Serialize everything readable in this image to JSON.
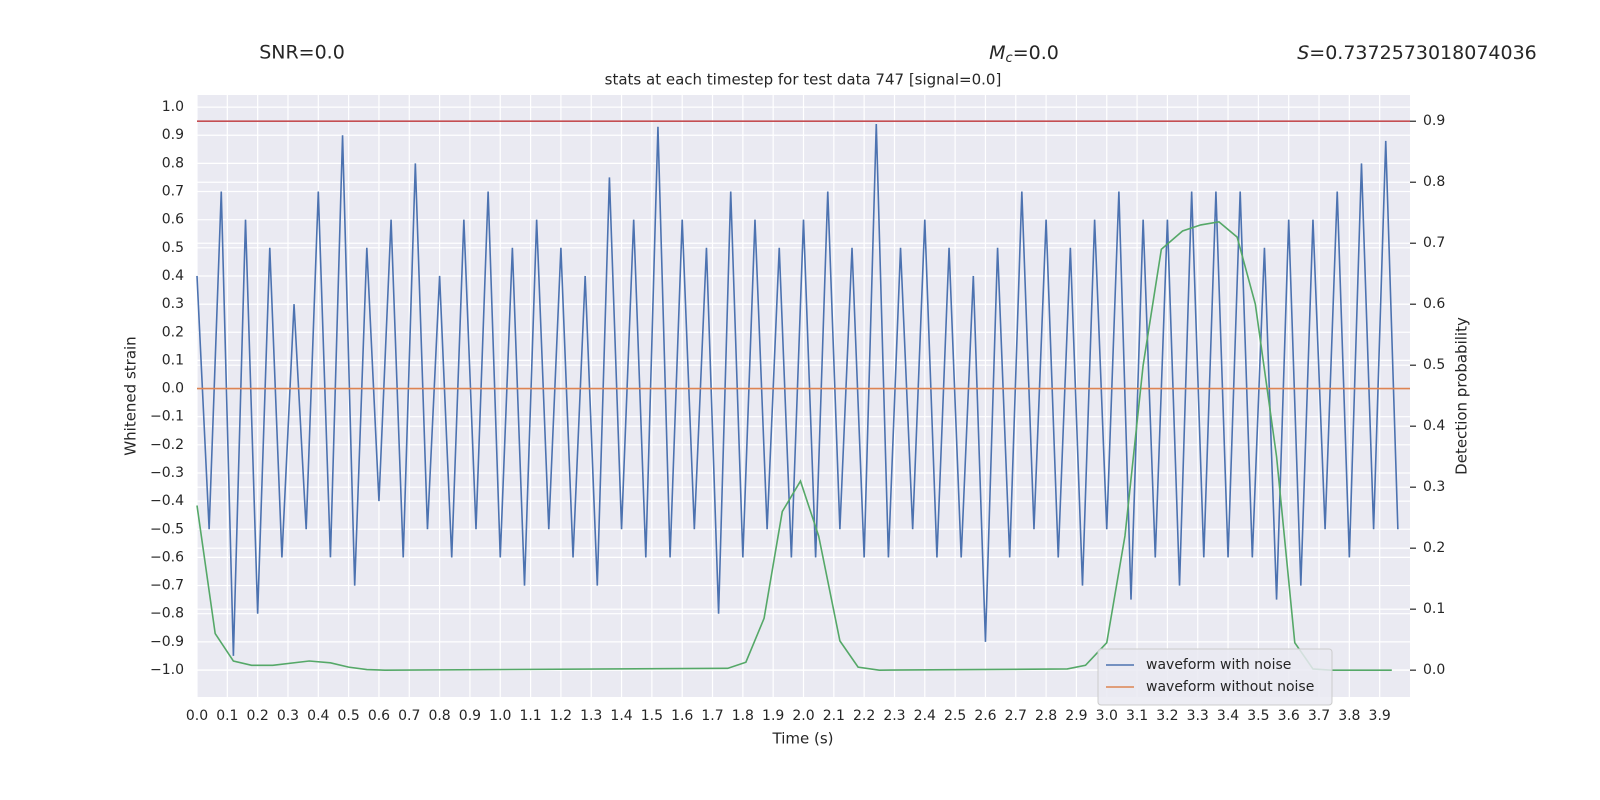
{
  "chart_data": {
    "type": "line",
    "title": "stats at each timestep for test data 747 [signal=0.0]",
    "annotations": [
      {
        "text": "SNR=0.0"
      },
      {
        "symbol": "M",
        "sub": "c",
        "text": "=0.0"
      },
      {
        "symbol": "S",
        "text": "=0.7372573018074036"
      }
    ],
    "xlabel": "Time (s)",
    "ylabel": "Whitened strain",
    "y2label": "Detection probability",
    "xlim": [
      0,
      4.0
    ],
    "ylim": [
      -1.096,
      1.043
    ],
    "y2lim": [
      -0.044,
      0.943
    ],
    "grid": true,
    "legend": "lower right",
    "background": "#eaeaf2",
    "xticks": [
      {
        "value": 0.0,
        "label": "0.0"
      },
      {
        "value": 0.1,
        "label": "0.1"
      },
      {
        "value": 0.2,
        "label": "0.2"
      },
      {
        "value": 0.3,
        "label": "0.3"
      },
      {
        "value": 0.4,
        "label": "0.4"
      },
      {
        "value": 0.5,
        "label": "0.5"
      },
      {
        "value": 0.6,
        "label": "0.6"
      },
      {
        "value": 0.7,
        "label": "0.7"
      },
      {
        "value": 0.8,
        "label": "0.8"
      },
      {
        "value": 0.9,
        "label": "0.9"
      },
      {
        "value": 1.0,
        "label": "1.0"
      },
      {
        "value": 1.1,
        "label": "1.1"
      },
      {
        "value": 1.2,
        "label": "1.2"
      },
      {
        "value": 1.3,
        "label": "1.3"
      },
      {
        "value": 1.4,
        "label": "1.4"
      },
      {
        "value": 1.5,
        "label": "1.5"
      },
      {
        "value": 1.6,
        "label": "1.6"
      },
      {
        "value": 1.7,
        "label": "1.7"
      },
      {
        "value": 1.8,
        "label": "1.8"
      },
      {
        "value": 1.9,
        "label": "1.9"
      },
      {
        "value": 2.0,
        "label": "2.0"
      },
      {
        "value": 2.1,
        "label": "2.1"
      },
      {
        "value": 2.2,
        "label": "2.2"
      },
      {
        "value": 2.3,
        "label": "2.3"
      },
      {
        "value": 2.4,
        "label": "2.4"
      },
      {
        "value": 2.5,
        "label": "2.5"
      },
      {
        "value": 2.6,
        "label": "2.6"
      },
      {
        "value": 2.7,
        "label": "2.7"
      },
      {
        "value": 2.8,
        "label": "2.8"
      },
      {
        "value": 2.9,
        "label": "2.9"
      },
      {
        "value": 3.0,
        "label": "3.0"
      },
      {
        "value": 3.1,
        "label": "3.1"
      },
      {
        "value": 3.2,
        "label": "3.2"
      },
      {
        "value": 3.3,
        "label": "3.3"
      },
      {
        "value": 3.4,
        "label": "3.4"
      },
      {
        "value": 3.5,
        "label": "3.5"
      },
      {
        "value": 3.6,
        "label": "3.6"
      },
      {
        "value": 3.7,
        "label": "3.7"
      },
      {
        "value": 3.8,
        "label": "3.8"
      },
      {
        "value": 3.9,
        "label": "3.9"
      }
    ],
    "yticks": [
      {
        "value": -1.0,
        "label": "−1.0"
      },
      {
        "value": -0.9,
        "label": "−0.9"
      },
      {
        "value": -0.8,
        "label": "−0.8"
      },
      {
        "value": -0.7,
        "label": "−0.7"
      },
      {
        "value": -0.6,
        "label": "−0.6"
      },
      {
        "value": -0.5,
        "label": "−0.5"
      },
      {
        "value": -0.4,
        "label": "−0.4"
      },
      {
        "value": -0.3,
        "label": "−0.3"
      },
      {
        "value": -0.2,
        "label": "−0.2"
      },
      {
        "value": -0.1,
        "label": "−0.1"
      },
      {
        "value": 0.0,
        "label": "0.0"
      },
      {
        "value": 0.1,
        "label": "0.1"
      },
      {
        "value": 0.2,
        "label": "0.2"
      },
      {
        "value": 0.3,
        "label": "0.3"
      },
      {
        "value": 0.4,
        "label": "0.4"
      },
      {
        "value": 0.5,
        "label": "0.5"
      },
      {
        "value": 0.6,
        "label": "0.6"
      },
      {
        "value": 0.7,
        "label": "0.7"
      },
      {
        "value": 0.8,
        "label": "0.8"
      },
      {
        "value": 0.9,
        "label": "0.9"
      },
      {
        "value": 1.0,
        "label": "1.0"
      }
    ],
    "y2ticks": [
      {
        "value": 0.0,
        "label": "0.0"
      },
      {
        "value": 0.1,
        "label": "0.1"
      },
      {
        "value": 0.2,
        "label": "0.2"
      },
      {
        "value": 0.3,
        "label": "0.3"
      },
      {
        "value": 0.4,
        "label": "0.4"
      },
      {
        "value": 0.5,
        "label": "0.5"
      },
      {
        "value": 0.6,
        "label": "0.6"
      },
      {
        "value": 0.7,
        "label": "0.7"
      },
      {
        "value": 0.8,
        "label": "0.8"
      },
      {
        "value": 0.9,
        "label": "0.9"
      }
    ],
    "hlines": [
      {
        "value": 0.9,
        "axis": "y2",
        "color": "#c44e52"
      }
    ],
    "series": [
      {
        "name": "waveform with noise",
        "color": "#4c72b0",
        "x": [
          0,
          0.04,
          0.08,
          0.12,
          0.16,
          0.2,
          0.24,
          0.28,
          0.32,
          0.36,
          0.4,
          0.44,
          0.48,
          0.52,
          0.56,
          0.6,
          0.64,
          0.68,
          0.72,
          0.76,
          0.8,
          0.84,
          0.88,
          0.92,
          0.96,
          1.0,
          1.04,
          1.08,
          1.12,
          1.16,
          1.2,
          1.24,
          1.28,
          1.32,
          1.36,
          1.4,
          1.44,
          1.48,
          1.52,
          1.56,
          1.6,
          1.64,
          1.68,
          1.72,
          1.76,
          1.8,
          1.84,
          1.88,
          1.92,
          1.96,
          2.0,
          2.04,
          2.08,
          2.12,
          2.16,
          2.2,
          2.24,
          2.28,
          2.32,
          2.36,
          2.4,
          2.44,
          2.48,
          2.52,
          2.56,
          2.6,
          2.64,
          2.68,
          2.72,
          2.76,
          2.8,
          2.84,
          2.88,
          2.92,
          2.96,
          3.0,
          3.04,
          3.08,
          3.12,
          3.16,
          3.2,
          3.24,
          3.28,
          3.32,
          3.36,
          3.4,
          3.44,
          3.48,
          3.52,
          3.56,
          3.6,
          3.64,
          3.68,
          3.72,
          3.76,
          3.8,
          3.84,
          3.88,
          3.92,
          3.96
        ],
        "values": [
          0.4,
          -0.5,
          0.7,
          -0.95,
          0.6,
          -0.8,
          0.5,
          -0.6,
          0.3,
          -0.5,
          0.7,
          -0.6,
          0.9,
          -0.7,
          0.5,
          -0.4,
          0.6,
          -0.6,
          0.8,
          -0.5,
          0.4,
          -0.6,
          0.6,
          -0.5,
          0.7,
          -0.6,
          0.5,
          -0.7,
          0.6,
          -0.5,
          0.5,
          -0.6,
          0.4,
          -0.7,
          0.75,
          -0.5,
          0.6,
          -0.6,
          0.93,
          -0.6,
          0.6,
          -0.5,
          0.5,
          -0.8,
          0.7,
          -0.6,
          0.6,
          -0.5,
          0.5,
          -0.6,
          0.6,
          -0.6,
          0.7,
          -0.5,
          0.5,
          -0.6,
          0.94,
          -0.6,
          0.5,
          -0.5,
          0.6,
          -0.6,
          0.5,
          -0.6,
          0.4,
          -0.9,
          0.5,
          -0.6,
          0.7,
          -0.5,
          0.6,
          -0.6,
          0.5,
          -0.7,
          0.6,
          -0.5,
          0.7,
          -0.75,
          0.6,
          -0.6,
          0.6,
          -0.7,
          0.7,
          -0.6,
          0.7,
          -0.6,
          0.7,
          -0.6,
          0.5,
          -0.75,
          0.6,
          -0.7,
          0.6,
          -0.5,
          0.7,
          -0.6,
          0.8,
          -0.5,
          0.88,
          -0.5
        ]
      },
      {
        "name": "waveform without noise",
        "color": "#dd8452",
        "x": [
          0,
          4.0
        ],
        "values": [
          0,
          0
        ]
      },
      {
        "color": "#55a868",
        "axis": "y2",
        "x": [
          0.0,
          0.06,
          0.12,
          0.18,
          0.25,
          0.37,
          0.44,
          0.5,
          0.56,
          0.62,
          1.75,
          1.81,
          1.87,
          1.93,
          1.99,
          2.05,
          2.12,
          2.18,
          2.25,
          2.87,
          2.93,
          3.0,
          3.06,
          3.12,
          3.18,
          3.25,
          3.31,
          3.37,
          3.43,
          3.49,
          3.56,
          3.62,
          3.68,
          3.74,
          3.94
        ],
        "values": [
          0.27,
          0.06,
          0.015,
          0.008,
          0.008,
          0.015,
          0.012,
          0.005,
          0.001,
          0.0,
          0.003,
          0.013,
          0.085,
          0.26,
          0.31,
          0.22,
          0.048,
          0.005,
          0.0,
          0.002,
          0.008,
          0.045,
          0.22,
          0.5,
          0.69,
          0.72,
          0.73,
          0.735,
          0.71,
          0.6,
          0.35,
          0.045,
          0.002,
          0.0,
          0.0
        ]
      }
    ]
  }
}
